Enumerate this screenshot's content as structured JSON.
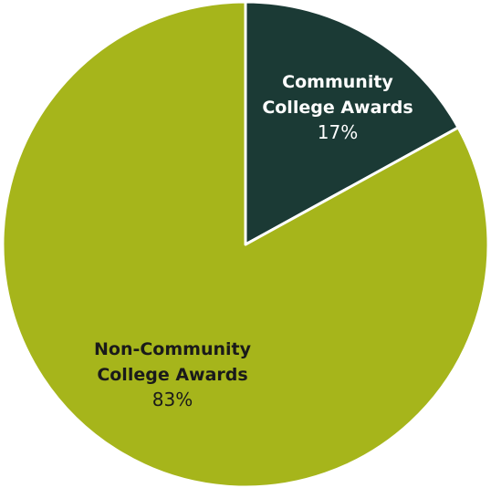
{
  "chart_data": {
    "type": "pie",
    "start_angle_deg": 0,
    "direction": "clockwise",
    "slices": [
      {
        "label_lines": [
          "Community",
          "College Awards"
        ],
        "value": 17,
        "percent_label": "17%",
        "color": "#1b3a35",
        "text_color": "#ffffff"
      },
      {
        "label_lines": [
          "Non-Community",
          "College Awards"
        ],
        "value": 83,
        "percent_label": "83%",
        "color": "#a6b51b",
        "text_color": "#1a1a1a"
      }
    ],
    "slice_border_color": "#ffffff"
  }
}
